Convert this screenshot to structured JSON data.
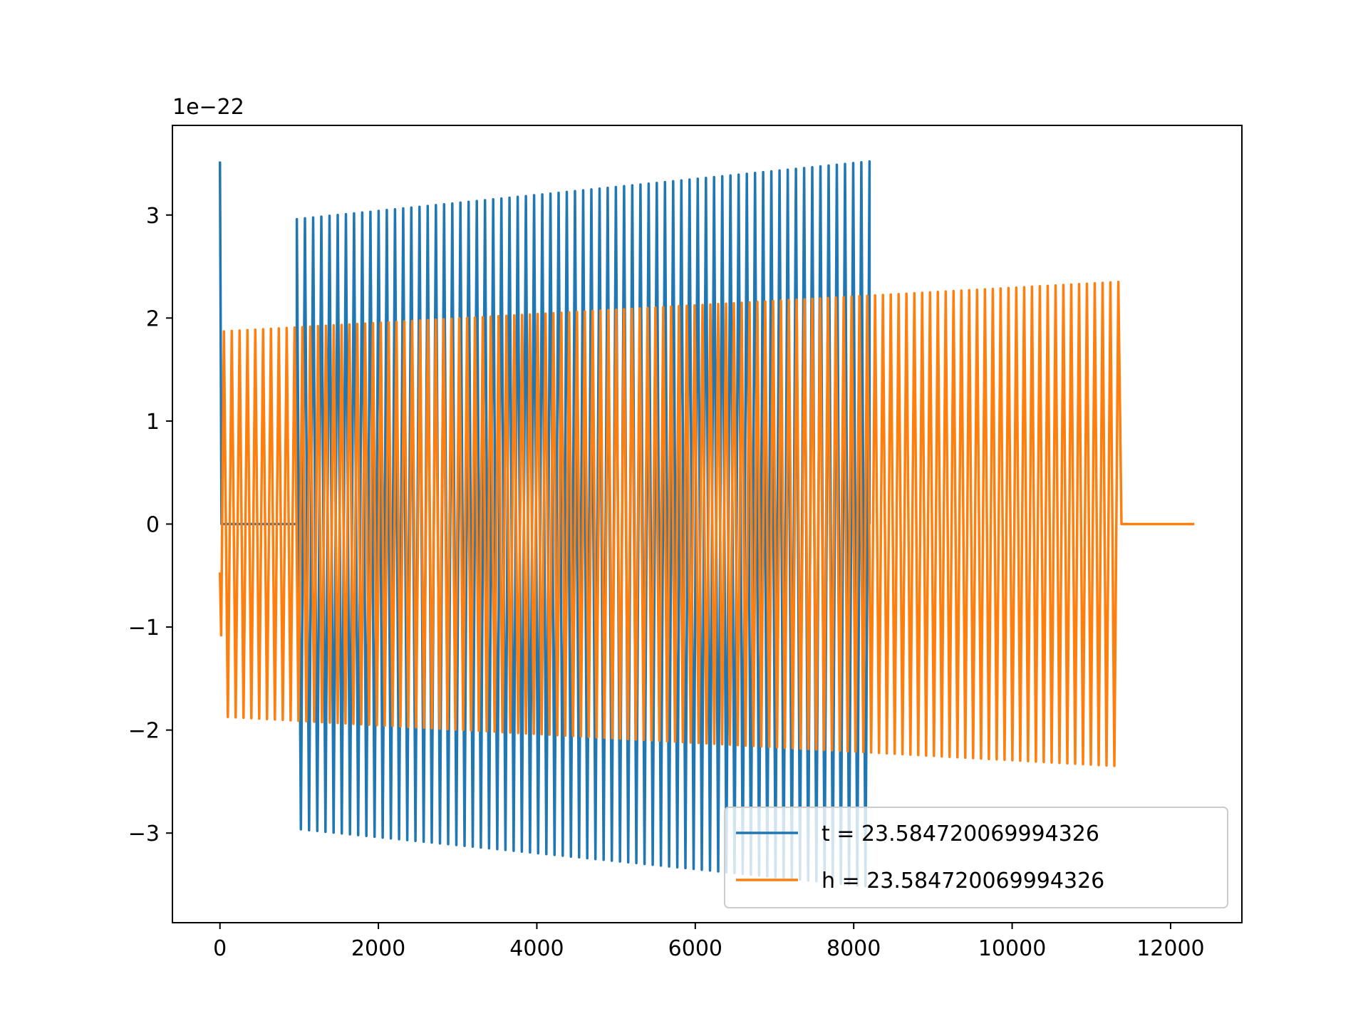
{
  "chart_data": {
    "type": "line",
    "title": "",
    "xlabel": "",
    "ylabel": "",
    "offset_text": "1e−22",
    "xlim": [
      -600,
      12900
    ],
    "ylim": [
      -3.87,
      3.87
    ],
    "x_ticks": [
      0,
      2000,
      4000,
      6000,
      8000,
      10000,
      12000
    ],
    "x_tick_labels": [
      "0",
      "2000",
      "4000",
      "6000",
      "8000",
      "10000",
      "12000"
    ],
    "y_ticks": [
      -3,
      -2,
      -1,
      0,
      1,
      2,
      3
    ],
    "y_tick_labels": [
      "−3",
      "−2",
      "−1",
      "0",
      "1",
      "2",
      "3"
    ],
    "grid": false,
    "legend_position": "lower right",
    "series": [
      {
        "name": "t = 23.584720069994326",
        "color": "#1f77b4",
        "description_points": {
          "x_start": 0,
          "x_end": 8200,
          "initial_spike_peak": 3.52,
          "quiet_until": 970,
          "amplitude_at_start": 2.96,
          "amplitude_at_end": 3.52,
          "cycles": 70
        }
      },
      {
        "name": "h = 23.584720069994326",
        "color": "#ff7f0e",
        "description_points": {
          "x_start": 0,
          "x_end": 12300,
          "start_value": -0.47,
          "first_trough": -1.08,
          "amplitude_at_start": 1.87,
          "amplitude_at_end": 2.35,
          "oscillation_end": 11340,
          "flat_after": 0,
          "cycles": 114
        }
      }
    ]
  }
}
